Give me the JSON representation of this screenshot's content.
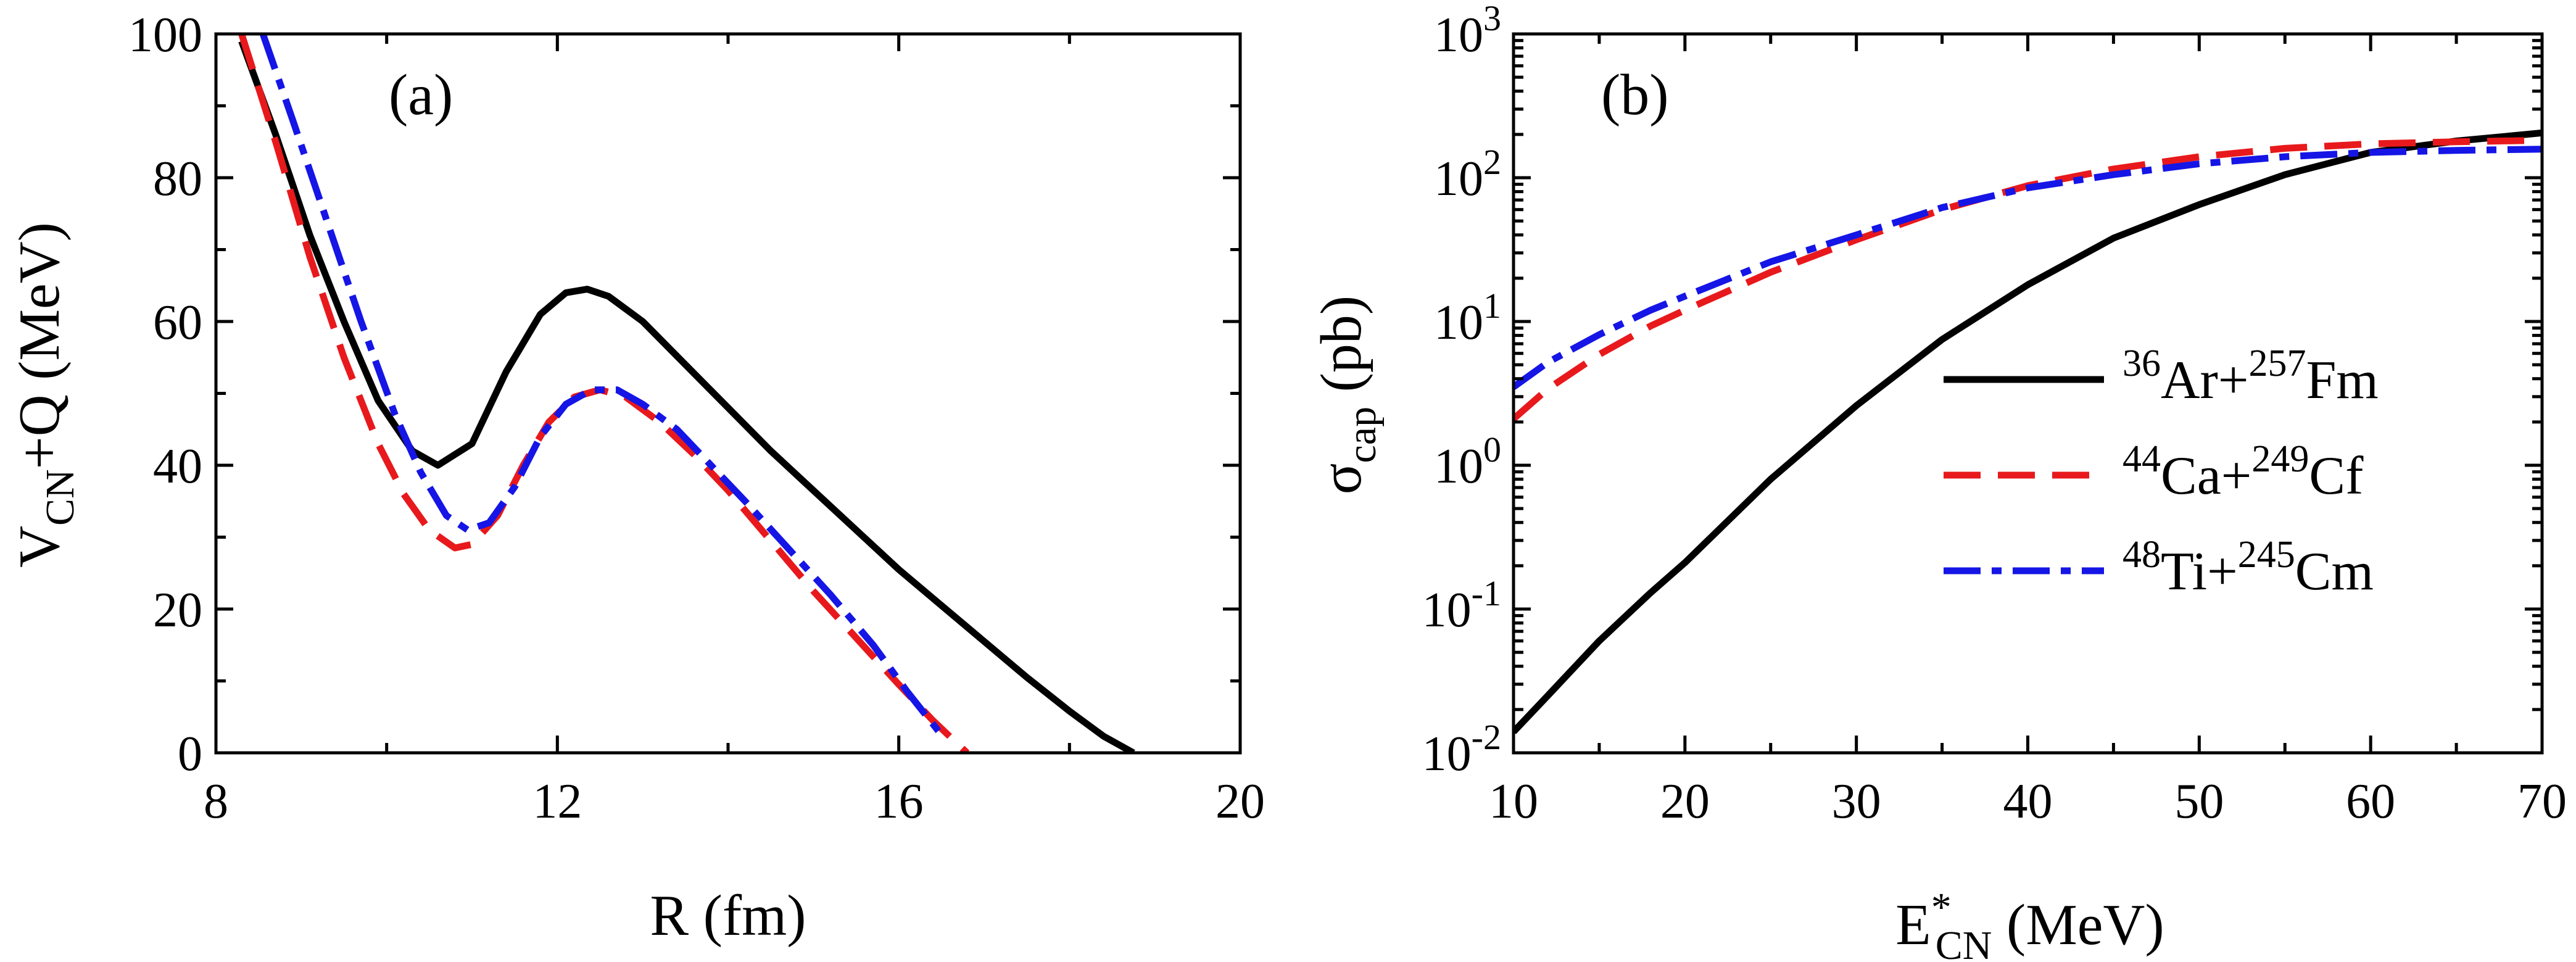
{
  "chart_data": [
    {
      "panel_label": "(a)",
      "type": "line",
      "xlabel": {
        "main": "R",
        "unit": " (fm)"
      },
      "ylabel": {
        "main": "V",
        "sub": "CN",
        "rest": "+Q",
        "unit": " (MeV)"
      },
      "xlim": [
        8,
        20
      ],
      "ylim": [
        0,
        100
      ],
      "xticks": [
        8,
        12,
        16,
        20
      ],
      "xtick_labels": [
        "8",
        "12",
        "16",
        "20"
      ],
      "yticks": [
        0,
        20,
        40,
        60,
        80,
        100
      ],
      "ytick_labels": [
        "0",
        "20",
        "40",
        "60",
        "80",
        "100"
      ],
      "series": [
        {
          "name": "36Ar+257Fm",
          "style": "solid",
          "color": "#000000",
          "x": [
            8.3,
            8.7,
            9.1,
            9.5,
            9.9,
            10.3,
            10.6,
            11.0,
            11.4,
            11.8,
            12.1,
            12.35,
            12.6,
            13.0,
            13.5,
            14.0,
            14.5,
            15.0,
            15.5,
            16.0,
            16.5,
            17.0,
            17.5,
            18.0,
            18.4,
            18.75
          ],
          "y": [
            99,
            86,
            72,
            60,
            49,
            42,
            40,
            43,
            53,
            61,
            64,
            64.5,
            63.5,
            60,
            54,
            48,
            42,
            36.5,
            31,
            25.5,
            20.5,
            15.5,
            10.5,
            5.8,
            2.3,
            0
          ]
        },
        {
          "name": "44Ca+249Cf",
          "style": "dashed",
          "color": "#e8191c",
          "x": [
            8.3,
            8.7,
            9.1,
            9.5,
            9.9,
            10.2,
            10.5,
            10.8,
            11.0,
            11.3,
            11.6,
            11.9,
            12.2,
            12.5,
            12.8,
            13.2,
            13.6,
            14.0,
            14.5,
            15.0,
            15.5,
            16.0,
            16.4,
            16.8
          ],
          "y": [
            100,
            85,
            69,
            55,
            43,
            36,
            31,
            28.5,
            29,
            33,
            40,
            46,
            49.5,
            50.5,
            49.5,
            46,
            41.5,
            36.5,
            29.5,
            22.5,
            16,
            9.5,
            4.5,
            0
          ]
        },
        {
          "name": "48Ti+245Cm",
          "style": "dashdot",
          "color": "#1515e6",
          "x": [
            8.55,
            8.9,
            9.3,
            9.7,
            10.1,
            10.4,
            10.7,
            10.95,
            11.2,
            11.5,
            11.8,
            12.1,
            12.4,
            12.7,
            13.0,
            13.4,
            13.8,
            14.2,
            14.7,
            15.2,
            15.7,
            16.1,
            16.5
          ],
          "y": [
            100,
            88,
            74,
            60,
            47,
            39,
            33,
            31,
            32,
            37,
            44,
            48.5,
            50.5,
            50.5,
            48.5,
            45,
            40,
            35,
            28.5,
            22,
            15,
            8.5,
            2.5
          ]
        }
      ]
    },
    {
      "panel_label": "(b)",
      "type": "line",
      "xlabel": {
        "main": "E",
        "sup": "*",
        "sub": "CN",
        "unit": " (MeV)"
      },
      "ylabel": {
        "main": "σ",
        "sub": "cap",
        "unit": " (pb)"
      },
      "yscale": "log",
      "xlim": [
        10,
        70
      ],
      "ylim_log10": [
        -2,
        3
      ],
      "xticks": [
        10,
        20,
        30,
        40,
        50,
        60,
        70
      ],
      "xtick_labels": [
        "10",
        "20",
        "30",
        "40",
        "50",
        "60",
        "70"
      ],
      "yticks_log10": [
        -2,
        -1,
        0,
        1,
        2,
        3
      ],
      "ytick_base": "10",
      "ytick_exponents": [
        "-2",
        "-1",
        "0",
        "1",
        "2",
        "3"
      ],
      "legend_position": "right",
      "series": [
        {
          "name": "36Ar+257Fm",
          "label": {
            "a_sup": "36",
            "a_el": "Ar+",
            "b_sup": "257",
            "b_el": "Fm"
          },
          "style": "solid",
          "color": "#000000",
          "x": [
            10,
            12,
            15,
            18,
            20,
            25,
            30,
            35,
            40,
            45,
            50,
            55,
            60,
            65,
            70
          ],
          "y": [
            0.014,
            0.025,
            0.06,
            0.13,
            0.21,
            0.8,
            2.6,
            7.5,
            18,
            38,
            65,
            105,
            150,
            180,
            205
          ]
        },
        {
          "name": "44Ca+249Cf",
          "label": {
            "a_sup": "44",
            "a_el": "Ca+",
            "b_sup": "249",
            "b_el": "Cf"
          },
          "style": "dashed",
          "color": "#e8191c",
          "x": [
            10,
            12,
            15,
            18,
            20,
            25,
            30,
            35,
            40,
            45,
            50,
            55,
            60,
            65,
            70
          ],
          "y": [
            2.1,
            3.4,
            5.9,
            9.3,
            12,
            22,
            37,
            60,
            88,
            115,
            140,
            160,
            172,
            178,
            182
          ]
        },
        {
          "name": "48Ti+245Cm",
          "label": {
            "a_sup": "48",
            "a_el": "Ti+",
            "b_sup": "245",
            "b_el": "Cm"
          },
          "style": "dashdot",
          "color": "#1515e6",
          "x": [
            10,
            12,
            15,
            18,
            20,
            25,
            30,
            35,
            40,
            45,
            50,
            55,
            60,
            65,
            70
          ],
          "y": [
            3.5,
            5.2,
            8.1,
            12,
            15,
            26,
            40,
            62,
            85,
            105,
            125,
            140,
            150,
            155,
            158
          ]
        }
      ]
    }
  ]
}
